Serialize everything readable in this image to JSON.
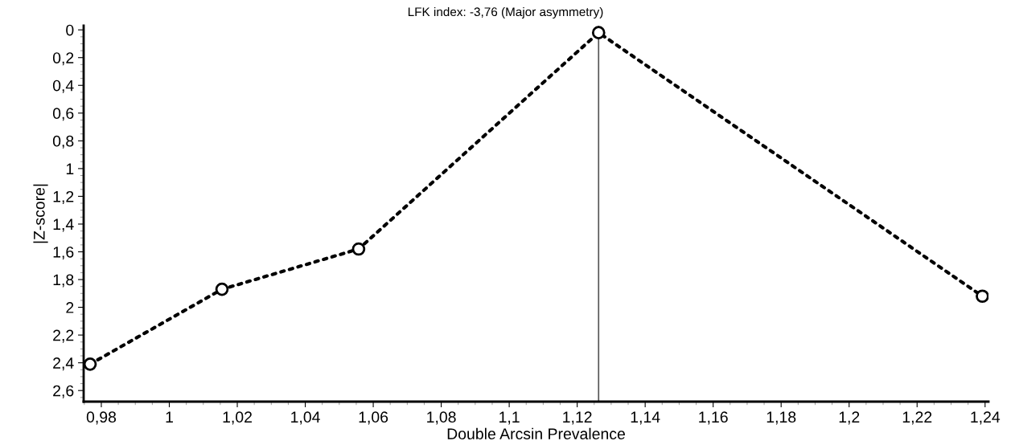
{
  "chart_data": {
    "type": "line",
    "title": "LFK index: -3,76 (Major asymmetry)",
    "xlabel": "Double Arcsin Prevalence",
    "ylabel": "|Z-score|",
    "x": [
      0.9767,
      1.0155,
      1.0557,
      1.1263,
      1.2392
    ],
    "series": [
      {
        "color": "#000000",
        "values": [
          2.41,
          1.87,
          1.58,
          0.02,
          1.92
        ]
      }
    ],
    "marker": "circle",
    "line_style": "dotted",
    "grid": false,
    "legend": false,
    "xlim": [
      0.9748,
      1.241
    ],
    "ylim": [
      2.68,
      -0.03
    ],
    "xticks": [
      {
        "value": 0.98,
        "label": "0,98"
      },
      1,
      {
        "value": 1.02,
        "label": "1,02"
      },
      {
        "value": 1.04,
        "label": "1,04"
      },
      {
        "value": 1.06,
        "label": "1,06"
      },
      {
        "value": 1.08,
        "label": "1,08"
      },
      {
        "value": 1.1,
        "label": "1,1"
      },
      {
        "value": 1.12,
        "label": "1,12"
      },
      {
        "value": 1.14,
        "label": "1,14"
      },
      {
        "value": 1.16,
        "label": "1,16"
      },
      {
        "value": 1.18,
        "label": "1,18"
      },
      {
        "value": 1.2,
        "label": "1,2"
      },
      {
        "value": 1.22,
        "label": "1,22"
      },
      {
        "value": 1.24,
        "label": "1,24"
      }
    ],
    "yticks": [
      0,
      {
        "value": 0.2,
        "label": "0,2"
      },
      {
        "value": 0.4,
        "label": "0,4"
      },
      {
        "value": 0.6,
        "label": "0,6"
      },
      {
        "value": 0.8,
        "label": "0,8"
      },
      1,
      {
        "value": 1.2,
        "label": "1,2"
      },
      {
        "value": 1.4,
        "label": "1,4"
      },
      {
        "value": 1.6,
        "label": "1,6"
      },
      {
        "value": 1.8,
        "label": "1,8"
      },
      2,
      {
        "value": 2.2,
        "label": "2,2"
      },
      {
        "value": 2.4,
        "label": "2,4"
      },
      {
        "value": 2.6,
        "label": "2,6"
      }
    ],
    "ref_lines": [
      {
        "axis": "x",
        "value": 1.1263,
        "color": "#555555",
        "line_style": "solid"
      }
    ]
  }
}
